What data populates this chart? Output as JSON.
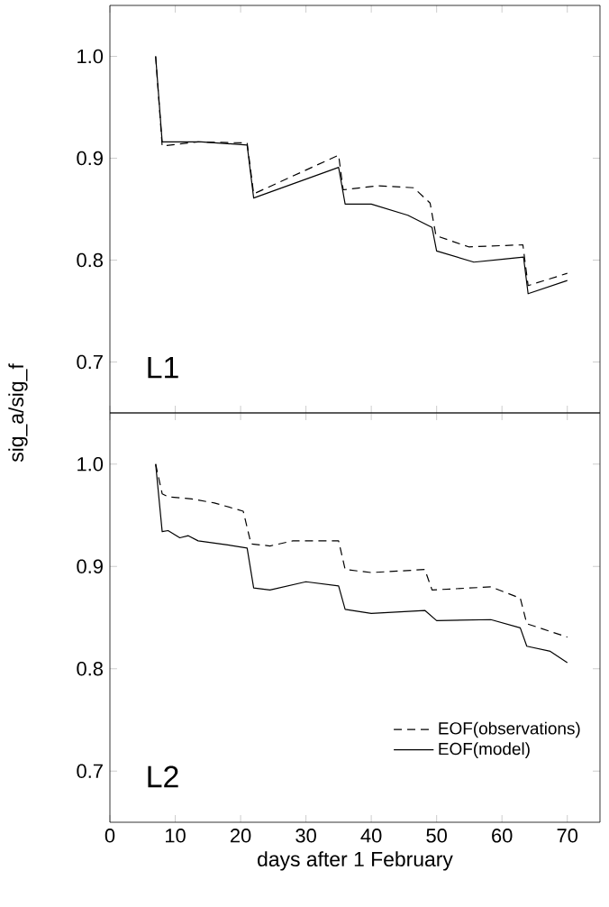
{
  "chart_data": [
    {
      "type": "line",
      "ylabel": "sig_a/sig_f",
      "annotations": [
        "L1"
      ],
      "xlim": [
        0,
        75
      ],
      "ylim": [
        0.65,
        1.05
      ],
      "xticks": [
        0,
        10,
        20,
        30,
        40,
        50,
        60,
        70
      ],
      "yticks": [
        0.7,
        0.8,
        0.9,
        {
          "value": 1.0,
          "label": "1.0"
        }
      ],
      "tick_labels": "y",
      "grid": false,
      "legend": false,
      "marker": "none",
      "series": [
        {
          "color": "#000000",
          "line_style": "dashed",
          "x": [
            7,
            8,
            13.5,
            21,
            22,
            35,
            35.7,
            41,
            46.5,
            49,
            49.9,
            54.9,
            63.2,
            64,
            70
          ],
          "values": [
            1.0,
            0.912,
            0.916,
            0.915,
            0.865,
            0.903,
            0.869,
            0.873,
            0.871,
            0.856,
            0.824,
            0.813,
            0.815,
            0.775,
            0.787
          ]
        },
        {
          "color": "#000000",
          "line_style": "solid",
          "x": [
            7,
            8,
            14,
            21,
            22,
            35,
            36,
            40,
            45.6,
            49.3,
            50,
            55.7,
            60.3,
            63.3,
            64,
            70
          ],
          "values": [
            1.0,
            0.916,
            0.916,
            0.913,
            0.861,
            0.891,
            0.855,
            0.855,
            0.844,
            0.832,
            0.809,
            0.798,
            0.801,
            0.803,
            0.767,
            0.78
          ]
        }
      ]
    },
    {
      "type": "line",
      "xlabel": "days after 1 February",
      "annotations": [
        "L2"
      ],
      "xlim": [
        0,
        75
      ],
      "ylim": [
        0.65,
        1.05
      ],
      "xticks": [
        0,
        10,
        20,
        30,
        40,
        50,
        60,
        70
      ],
      "yticks": [
        0.7,
        0.8,
        0.9,
        {
          "value": 1.0,
          "label": "1.0"
        }
      ],
      "grid": false,
      "legend": "bottom right",
      "marker": "none",
      "series": [
        {
          "name": "EOF(observations)",
          "color": "#000000",
          "line_style": "dashed",
          "x": [
            7,
            8,
            8.9,
            12.5,
            16,
            20.4,
            21.6,
            24.5,
            28,
            35,
            36,
            40,
            48.2,
            49.3,
            58.3,
            62.8,
            63.8,
            70
          ],
          "values": [
            1.0,
            0.971,
            0.968,
            0.966,
            0.962,
            0.954,
            0.922,
            0.92,
            0.925,
            0.925,
            0.897,
            0.894,
            0.897,
            0.877,
            0.88,
            0.869,
            0.844,
            0.831
          ]
        },
        {
          "name": "EOF(model)",
          "color": "#000000",
          "line_style": "solid",
          "x": [
            7,
            8,
            8.9,
            10.7,
            12,
            13.5,
            18,
            21,
            22,
            24.5,
            30,
            35,
            36,
            40,
            48.2,
            50,
            58.3,
            62.8,
            63.8,
            67.4,
            70
          ],
          "values": [
            1.0,
            0.934,
            0.935,
            0.928,
            0.93,
            0.925,
            0.921,
            0.918,
            0.879,
            0.877,
            0.885,
            0.881,
            0.858,
            0.854,
            0.857,
            0.847,
            0.848,
            0.84,
            0.822,
            0.817,
            0.806
          ]
        }
      ]
    }
  ]
}
